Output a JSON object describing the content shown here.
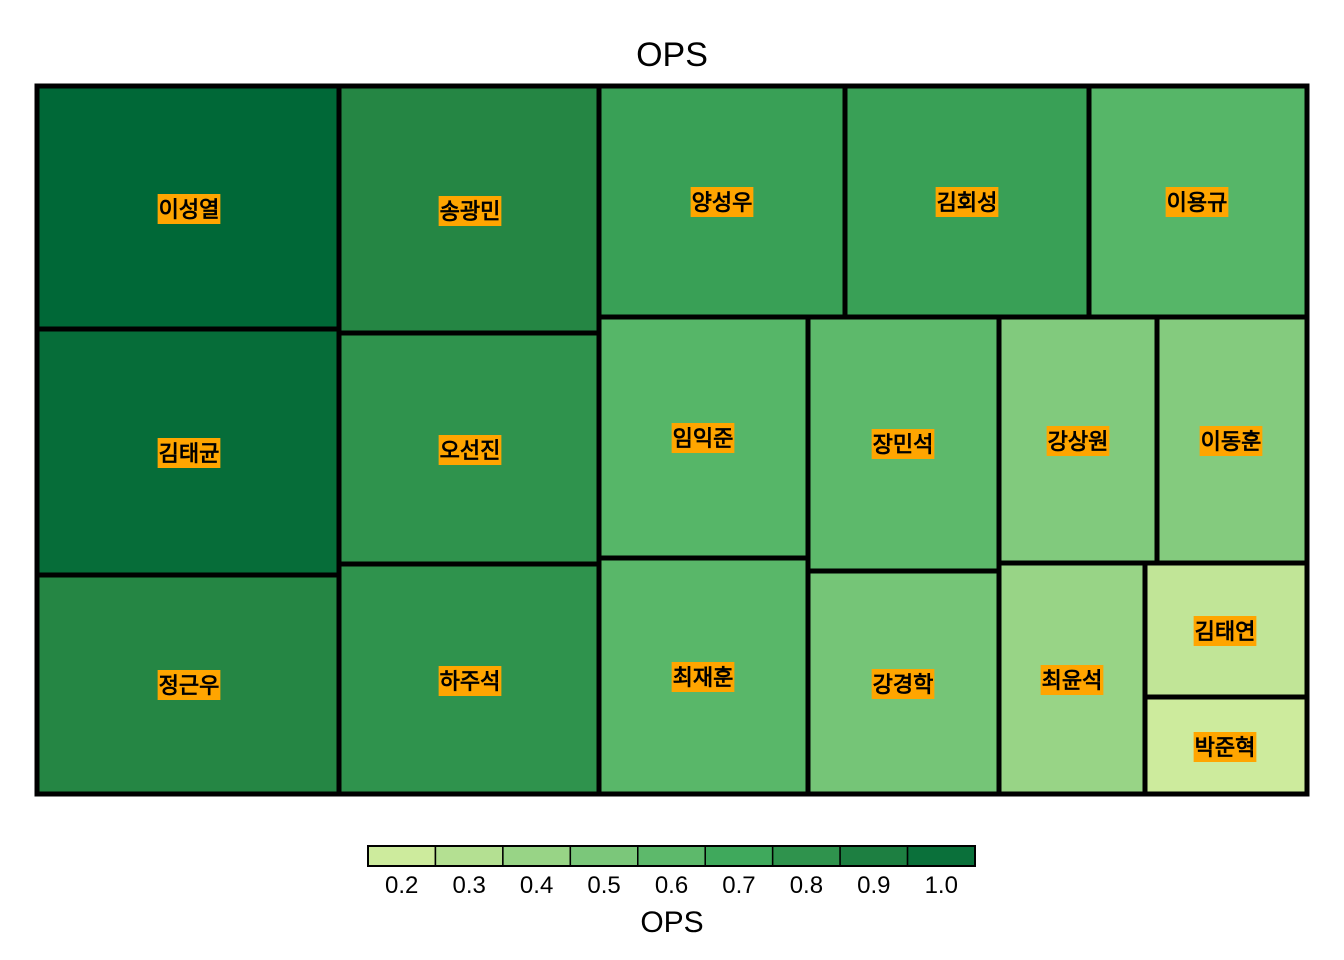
{
  "chart_data": {
    "type": "treemap",
    "title": "OPS",
    "colors": {
      "tile_border": "#000000",
      "label_background": "#FFA500",
      "scale": [
        "#d9f0a3",
        "#addd8e",
        "#78c679",
        "#41ab5d",
        "#238443",
        "#006837"
      ]
    },
    "tiles": [
      {
        "name": "이성열",
        "ops": 1.05
      },
      {
        "name": "김태균",
        "ops": 1.02
      },
      {
        "name": "정근우",
        "ops": 0.86
      },
      {
        "name": "송광민",
        "ops": 0.86
      },
      {
        "name": "오선진",
        "ops": 0.8
      },
      {
        "name": "하주석",
        "ops": 0.8
      },
      {
        "name": "양성우",
        "ops": 0.74
      },
      {
        "name": "김회성",
        "ops": 0.74
      },
      {
        "name": "이용규",
        "ops": 0.62
      },
      {
        "name": "임익준",
        "ops": 0.62
      },
      {
        "name": "장민석",
        "ops": 0.6
      },
      {
        "name": "강상원",
        "ops": 0.48
      },
      {
        "name": "이동훈",
        "ops": 0.47
      },
      {
        "name": "최재훈",
        "ops": 0.61
      },
      {
        "name": "강경학",
        "ops": 0.52
      },
      {
        "name": "최윤석",
        "ops": 0.4
      },
      {
        "name": "김태연",
        "ops": 0.25
      },
      {
        "name": "박준혁",
        "ops": 0.2
      }
    ],
    "legend": {
      "title": "OPS",
      "ticks": [
        "0.2",
        "0.3",
        "0.4",
        "0.5",
        "0.6",
        "0.7",
        "0.8",
        "0.9",
        "1.0"
      ],
      "tick_values": [
        0.2,
        0.3,
        0.4,
        0.5,
        0.6,
        0.7,
        0.8,
        0.9,
        1.0
      ],
      "range": [
        0.15,
        1.05
      ],
      "placement": "bottom"
    }
  }
}
